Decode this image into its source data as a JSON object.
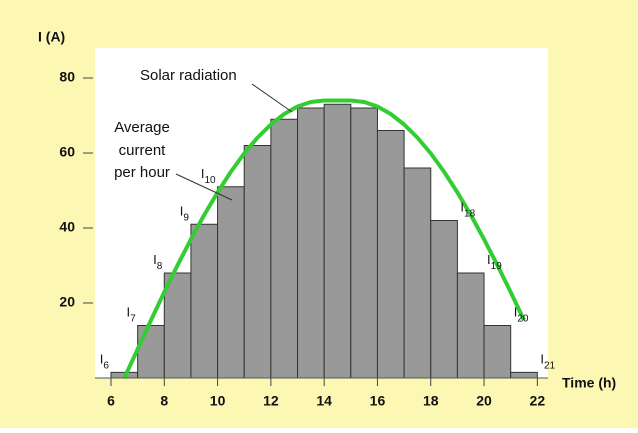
{
  "chart_data": {
    "type": "histogram",
    "y_label": "I (A)",
    "x_label": "Time (h)",
    "bins": [
      6,
      7,
      8,
      9,
      10,
      11,
      12,
      13,
      14,
      15,
      16,
      17,
      18,
      19,
      20,
      21,
      22
    ],
    "values": [
      1.5,
      14,
      28,
      41,
      51,
      62,
      69,
      72,
      73,
      72,
      66,
      56,
      42,
      28,
      14,
      1.5
    ],
    "bar_color": "#999999",
    "bar_labels": [
      "I6",
      "I7",
      "I8",
      "I9",
      "I10",
      null,
      null,
      null,
      null,
      null,
      null,
      null,
      "I18",
      "I19",
      "I20",
      "I21"
    ],
    "curve": {
      "color": "#33cc33",
      "x": [
        6.5,
        7,
        7.5,
        8,
        8.5,
        9,
        9.5,
        10,
        10.5,
        11,
        11.5,
        12,
        12.5,
        13,
        13.5,
        14,
        14.5,
        15,
        15.5,
        16,
        16.5,
        17,
        17.5,
        18,
        18.5,
        19,
        19.5,
        20,
        20.5,
        21,
        21.5
      ],
      "values": [
        0,
        7.7,
        15.4,
        22.9,
        30.1,
        37,
        43.5,
        49.5,
        55,
        59.9,
        64.1,
        67.6,
        70.4,
        72.4,
        73.6,
        74,
        74,
        74,
        73.6,
        72.4,
        70.4,
        67.6,
        64.1,
        59.9,
        55,
        49.5,
        43.5,
        37,
        30.1,
        22.9,
        15.4
      ]
    },
    "curve_annotation": "Solar radiation",
    "bar_annotation": [
      "Average",
      "current",
      "per hour"
    ],
    "xlim": [
      5.4,
      22.4
    ],
    "ylim": [
      0,
      88
    ],
    "xticks": [
      6,
      8,
      10,
      12,
      14,
      16,
      18,
      20,
      22
    ],
    "yticks": [
      20,
      40,
      60,
      80
    ]
  }
}
